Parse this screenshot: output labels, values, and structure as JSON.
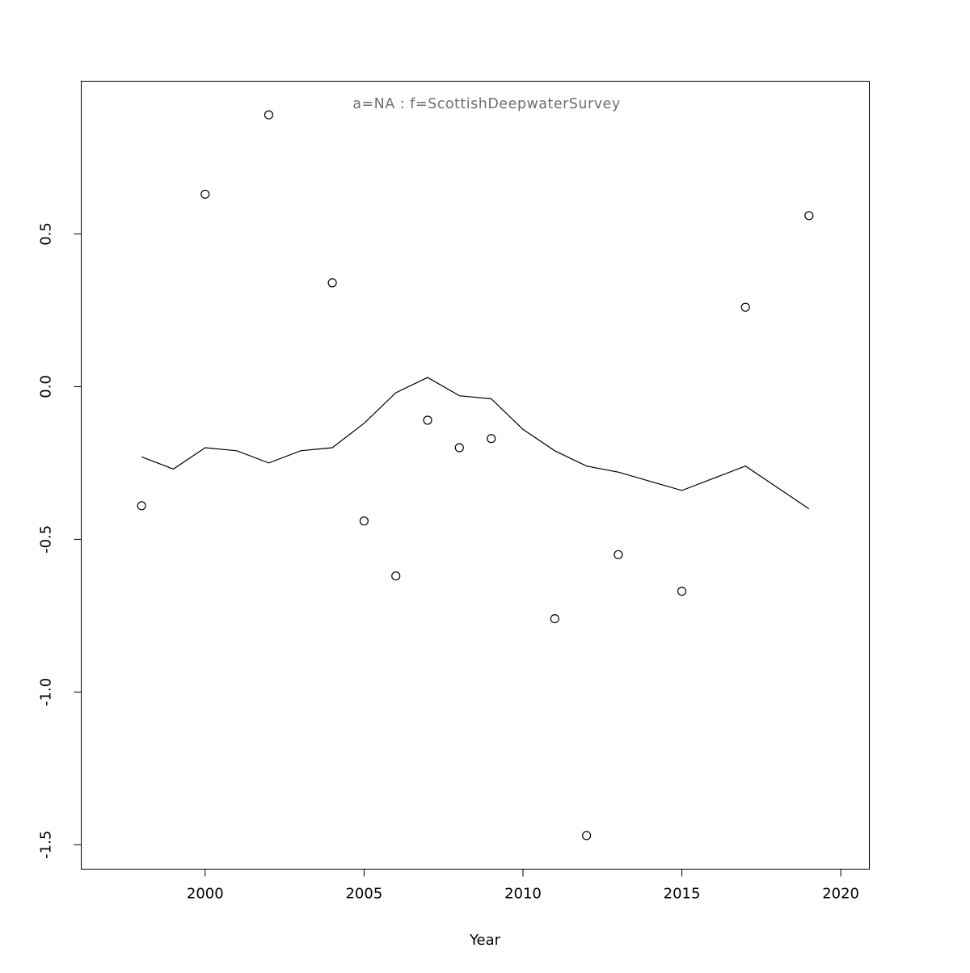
{
  "chart_data": {
    "type": "scatter",
    "title": "a=NA : f=ScottishDeepwaterSurvey",
    "xlabel": "Year",
    "ylabel": "",
    "xlim": [
      1996.1,
      2020.9
    ],
    "ylim": [
      -1.58,
      1.0
    ],
    "grid": false,
    "legend": "none",
    "x_ticks": [
      2000,
      2005,
      2010,
      2015,
      2020
    ],
    "x_tick_labels": [
      "2000",
      "2005",
      "2010",
      "2015",
      "2020"
    ],
    "y_ticks": [
      -1.5,
      -1.0,
      -0.5,
      0.0,
      0.5
    ],
    "y_tick_labels": [
      "-1.5",
      "-1.0",
      "-0.5",
      "0.0",
      "0.5"
    ],
    "colors": {
      "title": "#6e6e6e",
      "line": "#000000",
      "points": "#000000",
      "box": "#000000"
    },
    "series": [
      {
        "name": "observations",
        "style": "scatter",
        "marker": "open-circle",
        "x": [
          1998,
          2000,
          2002,
          2004,
          2005,
          2006,
          2007,
          2008,
          2009,
          2011,
          2012,
          2013,
          2015,
          2017,
          2019
        ],
        "y": [
          -0.39,
          0.63,
          0.89,
          0.34,
          -0.44,
          -0.62,
          -0.11,
          -0.2,
          -0.17,
          -0.76,
          -1.47,
          -0.55,
          -0.67,
          0.26,
          0.56
        ]
      },
      {
        "name": "smoothed-trend",
        "style": "line",
        "x": [
          1998,
          1999,
          2000,
          2001,
          2002,
          2003,
          2004,
          2005,
          2006,
          2007,
          2008,
          2009,
          2010,
          2011,
          2012,
          2013,
          2014,
          2015,
          2016,
          2017,
          2018,
          2019
        ],
        "y": [
          -0.23,
          -0.27,
          -0.2,
          -0.21,
          -0.25,
          -0.21,
          -0.2,
          -0.12,
          -0.02,
          0.03,
          -0.03,
          -0.04,
          -0.14,
          -0.21,
          -0.26,
          -0.28,
          -0.31,
          -0.34,
          -0.3,
          -0.26,
          -0.33,
          -0.4
        ]
      }
    ]
  }
}
